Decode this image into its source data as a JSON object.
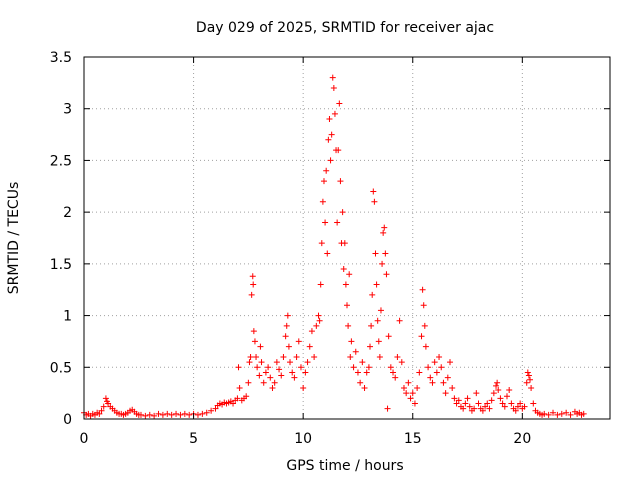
{
  "chart_data": {
    "type": "scatter",
    "title": "Day 029 of 2025, SRMTID for receiver ajac",
    "xlabel": "GPS time / hours",
    "ylabel": "SRMTID / TECUs",
    "xlim": [
      0,
      24
    ],
    "ylim": [
      0,
      3.5
    ],
    "grid": true,
    "x_ticks": [
      0,
      5,
      10,
      15,
      20
    ],
    "x_tick_labels": [
      "0",
      "5",
      "10",
      "15",
      "20"
    ],
    "y_ticks": [
      0,
      0.5,
      1,
      1.5,
      2,
      2.5,
      3,
      3.5
    ],
    "y_tick_labels": [
      "0",
      "0.5",
      "1",
      "1.5",
      "2",
      "2.5",
      "3",
      "3.5"
    ],
    "marker": "+",
    "marker_color": "#ff0000",
    "series": [
      {
        "name": "SRMTID",
        "points": [
          [
            0.0,
            0.06
          ],
          [
            0.1,
            0.04
          ],
          [
            0.2,
            0.05
          ],
          [
            0.3,
            0.03
          ],
          [
            0.4,
            0.05
          ],
          [
            0.5,
            0.04
          ],
          [
            0.6,
            0.06
          ],
          [
            0.7,
            0.05
          ],
          [
            0.8,
            0.08
          ],
          [
            0.9,
            0.12
          ],
          [
            1.0,
            0.2
          ],
          [
            1.05,
            0.17
          ],
          [
            1.1,
            0.15
          ],
          [
            1.2,
            0.12
          ],
          [
            1.3,
            0.1
          ],
          [
            1.4,
            0.08
          ],
          [
            1.5,
            0.06
          ],
          [
            1.6,
            0.05
          ],
          [
            1.7,
            0.05
          ],
          [
            1.8,
            0.04
          ],
          [
            1.9,
            0.05
          ],
          [
            2.0,
            0.06
          ],
          [
            2.1,
            0.08
          ],
          [
            2.2,
            0.09
          ],
          [
            2.3,
            0.07
          ],
          [
            2.4,
            0.05
          ],
          [
            2.5,
            0.04
          ],
          [
            2.6,
            0.04
          ],
          [
            2.8,
            0.03
          ],
          [
            3.0,
            0.04
          ],
          [
            3.2,
            0.03
          ],
          [
            3.4,
            0.05
          ],
          [
            3.6,
            0.04
          ],
          [
            3.8,
            0.05
          ],
          [
            4.0,
            0.04
          ],
          [
            4.2,
            0.05
          ],
          [
            4.4,
            0.04
          ],
          [
            4.6,
            0.05
          ],
          [
            4.8,
            0.04
          ],
          [
            5.0,
            0.05
          ],
          [
            5.2,
            0.04
          ],
          [
            5.4,
            0.05
          ],
          [
            5.6,
            0.06
          ],
          [
            5.8,
            0.08
          ],
          [
            6.0,
            0.1
          ],
          [
            6.1,
            0.13
          ],
          [
            6.2,
            0.15
          ],
          [
            6.3,
            0.14
          ],
          [
            6.4,
            0.16
          ],
          [
            6.5,
            0.15
          ],
          [
            6.6,
            0.16
          ],
          [
            6.7,
            0.17
          ],
          [
            6.8,
            0.15
          ],
          [
            6.9,
            0.18
          ],
          [
            7.0,
            0.2
          ],
          [
            7.05,
            0.5
          ],
          [
            7.1,
            0.3
          ],
          [
            7.2,
            0.18
          ],
          [
            7.3,
            0.2
          ],
          [
            7.4,
            0.22
          ],
          [
            7.5,
            0.35
          ],
          [
            7.55,
            0.55
          ],
          [
            7.6,
            0.6
          ],
          [
            7.65,
            1.2
          ],
          [
            7.7,
            1.38
          ],
          [
            7.72,
            1.3
          ],
          [
            7.75,
            0.85
          ],
          [
            7.8,
            0.75
          ],
          [
            7.85,
            0.6
          ],
          [
            7.9,
            0.5
          ],
          [
            8.0,
            0.42
          ],
          [
            8.05,
            0.7
          ],
          [
            8.1,
            0.55
          ],
          [
            8.2,
            0.35
          ],
          [
            8.3,
            0.45
          ],
          [
            8.4,
            0.5
          ],
          [
            8.5,
            0.4
          ],
          [
            8.6,
            0.3
          ],
          [
            8.7,
            0.35
          ],
          [
            8.8,
            0.55
          ],
          [
            8.9,
            0.48
          ],
          [
            9.0,
            0.42
          ],
          [
            9.1,
            0.6
          ],
          [
            9.2,
            0.8
          ],
          [
            9.25,
            0.9
          ],
          [
            9.3,
            1.0
          ],
          [
            9.35,
            0.7
          ],
          [
            9.4,
            0.55
          ],
          [
            9.5,
            0.45
          ],
          [
            9.6,
            0.4
          ],
          [
            9.7,
            0.6
          ],
          [
            9.8,
            0.75
          ],
          [
            9.9,
            0.5
          ],
          [
            10.0,
            0.3
          ],
          [
            10.1,
            0.45
          ],
          [
            10.2,
            0.55
          ],
          [
            10.3,
            0.7
          ],
          [
            10.4,
            0.85
          ],
          [
            10.5,
            0.6
          ],
          [
            10.6,
            0.9
          ],
          [
            10.7,
            1.0
          ],
          [
            10.75,
            0.95
          ],
          [
            10.8,
            1.3
          ],
          [
            10.85,
            1.7
          ],
          [
            10.9,
            2.1
          ],
          [
            10.95,
            2.3
          ],
          [
            11.0,
            1.9
          ],
          [
            11.05,
            2.4
          ],
          [
            11.1,
            1.6
          ],
          [
            11.15,
            2.7
          ],
          [
            11.2,
            2.9
          ],
          [
            11.25,
            2.5
          ],
          [
            11.3,
            2.75
          ],
          [
            11.35,
            3.3
          ],
          [
            11.4,
            3.2
          ],
          [
            11.45,
            2.95
          ],
          [
            11.5,
            2.6
          ],
          [
            11.55,
            1.9
          ],
          [
            11.6,
            2.6
          ],
          [
            11.65,
            3.05
          ],
          [
            11.7,
            2.3
          ],
          [
            11.75,
            1.7
          ],
          [
            11.8,
            2.0
          ],
          [
            11.85,
            1.45
          ],
          [
            11.9,
            1.7
          ],
          [
            11.95,
            1.3
          ],
          [
            12.0,
            1.1
          ],
          [
            12.05,
            0.9
          ],
          [
            12.1,
            1.4
          ],
          [
            12.15,
            0.6
          ],
          [
            12.2,
            0.75
          ],
          [
            12.3,
            0.5
          ],
          [
            12.4,
            0.65
          ],
          [
            12.5,
            0.45
          ],
          [
            12.6,
            0.35
          ],
          [
            12.7,
            0.55
          ],
          [
            12.8,
            0.3
          ],
          [
            12.9,
            0.45
          ],
          [
            13.0,
            0.5
          ],
          [
            13.05,
            0.7
          ],
          [
            13.1,
            0.9
          ],
          [
            13.15,
            1.2
          ],
          [
            13.2,
            2.2
          ],
          [
            13.25,
            2.1
          ],
          [
            13.3,
            1.6
          ],
          [
            13.35,
            1.3
          ],
          [
            13.4,
            0.95
          ],
          [
            13.45,
            0.75
          ],
          [
            13.5,
            0.6
          ],
          [
            13.55,
            1.05
          ],
          [
            13.6,
            1.5
          ],
          [
            13.65,
            1.8
          ],
          [
            13.7,
            1.85
          ],
          [
            13.75,
            1.6
          ],
          [
            13.8,
            1.4
          ],
          [
            13.85,
            0.1
          ],
          [
            13.9,
            0.8
          ],
          [
            14.0,
            0.5
          ],
          [
            14.1,
            0.45
          ],
          [
            14.2,
            0.4
          ],
          [
            14.3,
            0.6
          ],
          [
            14.4,
            0.95
          ],
          [
            14.5,
            0.55
          ],
          [
            14.6,
            0.3
          ],
          [
            14.7,
            0.25
          ],
          [
            14.8,
            0.35
          ],
          [
            14.9,
            0.2
          ],
          [
            15.0,
            0.25
          ],
          [
            15.1,
            0.15
          ],
          [
            15.2,
            0.3
          ],
          [
            15.3,
            0.45
          ],
          [
            15.4,
            0.8
          ],
          [
            15.45,
            1.25
          ],
          [
            15.5,
            1.1
          ],
          [
            15.55,
            0.9
          ],
          [
            15.6,
            0.7
          ],
          [
            15.7,
            0.5
          ],
          [
            15.8,
            0.4
          ],
          [
            15.9,
            0.35
          ],
          [
            16.0,
            0.55
          ],
          [
            16.1,
            0.45
          ],
          [
            16.2,
            0.6
          ],
          [
            16.3,
            0.5
          ],
          [
            16.4,
            0.35
          ],
          [
            16.5,
            0.25
          ],
          [
            16.6,
            0.4
          ],
          [
            16.7,
            0.55
          ],
          [
            16.8,
            0.3
          ],
          [
            16.9,
            0.2
          ],
          [
            17.0,
            0.15
          ],
          [
            17.1,
            0.18
          ],
          [
            17.2,
            0.12
          ],
          [
            17.3,
            0.1
          ],
          [
            17.4,
            0.15
          ],
          [
            17.5,
            0.2
          ],
          [
            17.6,
            0.12
          ],
          [
            17.7,
            0.08
          ],
          [
            17.8,
            0.1
          ],
          [
            17.9,
            0.25
          ],
          [
            18.0,
            0.15
          ],
          [
            18.1,
            0.1
          ],
          [
            18.2,
            0.08
          ],
          [
            18.3,
            0.12
          ],
          [
            18.4,
            0.15
          ],
          [
            18.5,
            0.1
          ],
          [
            18.6,
            0.18
          ],
          [
            18.7,
            0.25
          ],
          [
            18.8,
            0.32
          ],
          [
            18.85,
            0.35
          ],
          [
            18.9,
            0.28
          ],
          [
            19.0,
            0.2
          ],
          [
            19.1,
            0.15
          ],
          [
            19.2,
            0.12
          ],
          [
            19.3,
            0.22
          ],
          [
            19.4,
            0.28
          ],
          [
            19.5,
            0.15
          ],
          [
            19.6,
            0.1
          ],
          [
            19.7,
            0.08
          ],
          [
            19.8,
            0.12
          ],
          [
            19.9,
            0.15
          ],
          [
            20.0,
            0.1
          ],
          [
            20.1,
            0.12
          ],
          [
            20.2,
            0.35
          ],
          [
            20.25,
            0.45
          ],
          [
            20.3,
            0.42
          ],
          [
            20.35,
            0.38
          ],
          [
            20.4,
            0.3
          ],
          [
            20.5,
            0.15
          ],
          [
            20.6,
            0.08
          ],
          [
            20.7,
            0.06
          ],
          [
            20.8,
            0.05
          ],
          [
            20.9,
            0.04
          ],
          [
            21.0,
            0.05
          ],
          [
            21.2,
            0.04
          ],
          [
            21.4,
            0.06
          ],
          [
            21.6,
            0.04
          ],
          [
            21.8,
            0.05
          ],
          [
            22.0,
            0.06
          ],
          [
            22.2,
            0.04
          ],
          [
            22.4,
            0.07
          ],
          [
            22.5,
            0.05
          ],
          [
            22.6,
            0.06
          ],
          [
            22.7,
            0.04
          ],
          [
            22.8,
            0.05
          ]
        ]
      }
    ]
  }
}
